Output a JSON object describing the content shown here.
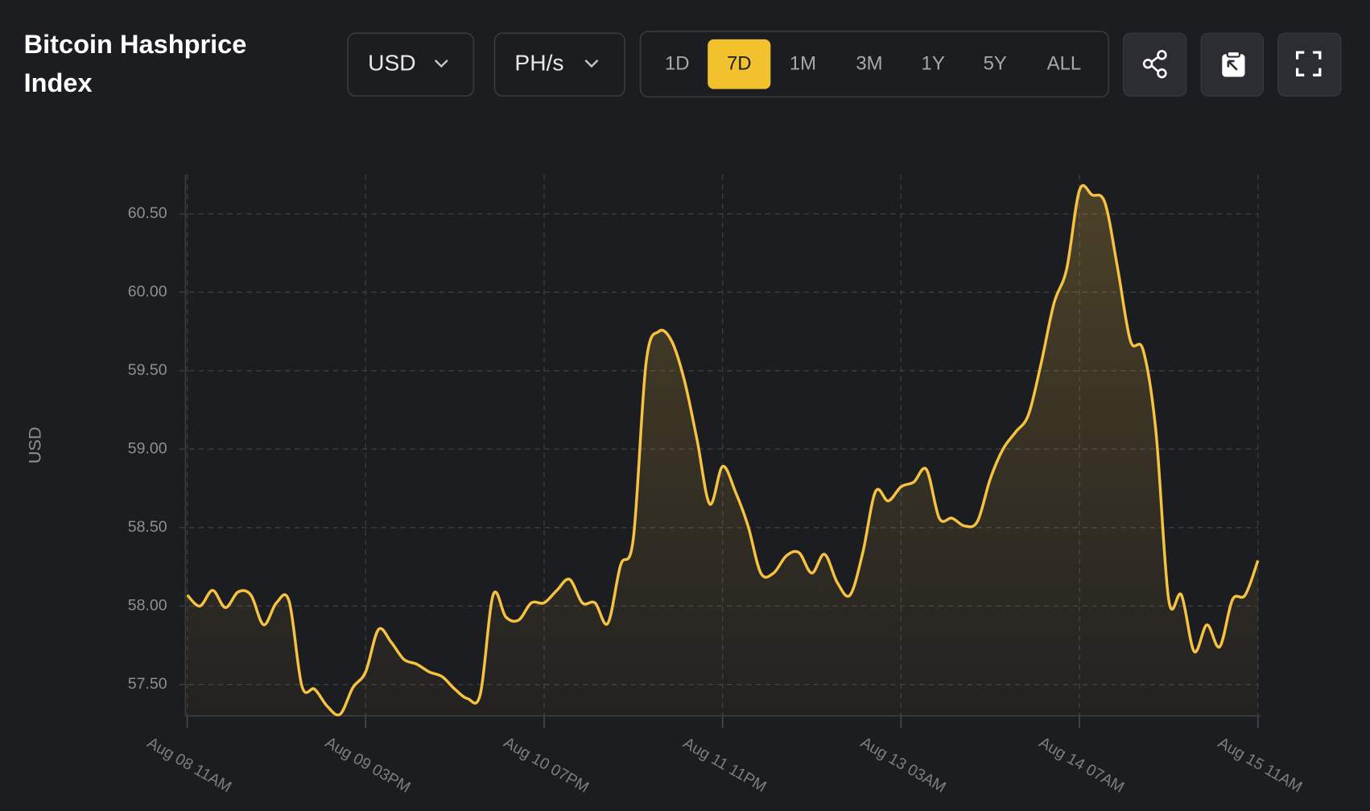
{
  "header": {
    "title": "Bitcoin Hashprice Index",
    "currency": "USD",
    "unit": "PH/s",
    "ranges": [
      "1D",
      "7D",
      "1M",
      "3M",
      "1Y",
      "5Y",
      "ALL"
    ],
    "active_range": 1
  },
  "chart_data": {
    "type": "line",
    "ylabel": "USD",
    "color": "#f5c242",
    "categories": [
      "Aug 08 11AM",
      null,
      null,
      null,
      null,
      null,
      null,
      null,
      null,
      null,
      null,
      null,
      null,
      null,
      "Aug 09 03PM",
      null,
      null,
      null,
      null,
      null,
      null,
      null,
      null,
      null,
      null,
      null,
      null,
      null,
      "Aug 10 07PM",
      null,
      null,
      null,
      null,
      null,
      null,
      null,
      null,
      null,
      null,
      null,
      null,
      null,
      "Aug 11 11PM",
      null,
      null,
      null,
      null,
      null,
      null,
      null,
      null,
      null,
      null,
      null,
      null,
      null,
      "Aug 13 03AM",
      null,
      null,
      null,
      null,
      null,
      null,
      null,
      null,
      null,
      null,
      null,
      null,
      null,
      "Aug 14 07AM",
      null,
      null,
      null,
      null,
      null,
      null,
      null,
      null,
      null,
      null,
      null,
      null,
      null,
      "Aug 15 11AM"
    ],
    "values": [
      58.07,
      58.0,
      58.1,
      57.99,
      58.09,
      58.07,
      57.88,
      58.02,
      58.03,
      57.49,
      57.47,
      57.36,
      57.31,
      57.48,
      57.58,
      57.85,
      57.77,
      57.66,
      57.63,
      57.58,
      57.55,
      57.47,
      57.41,
      57.44,
      58.07,
      57.93,
      57.91,
      58.02,
      58.02,
      58.1,
      58.17,
      58.02,
      58.02,
      57.89,
      58.26,
      58.43,
      59.55,
      59.75,
      59.69,
      59.44,
      59.06,
      58.65,
      58.89,
      58.73,
      58.51,
      58.21,
      58.21,
      58.32,
      58.34,
      58.21,
      58.33,
      58.15,
      58.07,
      58.34,
      58.73,
      58.67,
      58.76,
      58.79,
      58.87,
      58.56,
      58.56,
      58.51,
      58.54,
      58.81,
      59.0,
      59.11,
      59.22,
      59.55,
      59.93,
      60.15,
      60.65,
      60.62,
      60.57,
      60.15,
      59.69,
      59.63,
      59.11,
      58.04,
      58.07,
      57.71,
      57.88,
      57.74,
      58.04,
      58.07,
      58.29
    ],
    "ylim": [
      57.3,
      60.75
    ],
    "yticks": [
      {
        "value": 57.5,
        "label": "57.50"
      },
      {
        "value": 58,
        "label": "58.00"
      },
      {
        "value": 58.5,
        "label": "58.50"
      },
      {
        "value": 59,
        "label": "59.00"
      },
      {
        "value": 59.5,
        "label": "59.50"
      },
      {
        "value": 60,
        "label": "60.00"
      },
      {
        "value": 60.5,
        "label": "60.50"
      }
    ],
    "grid": true
  }
}
